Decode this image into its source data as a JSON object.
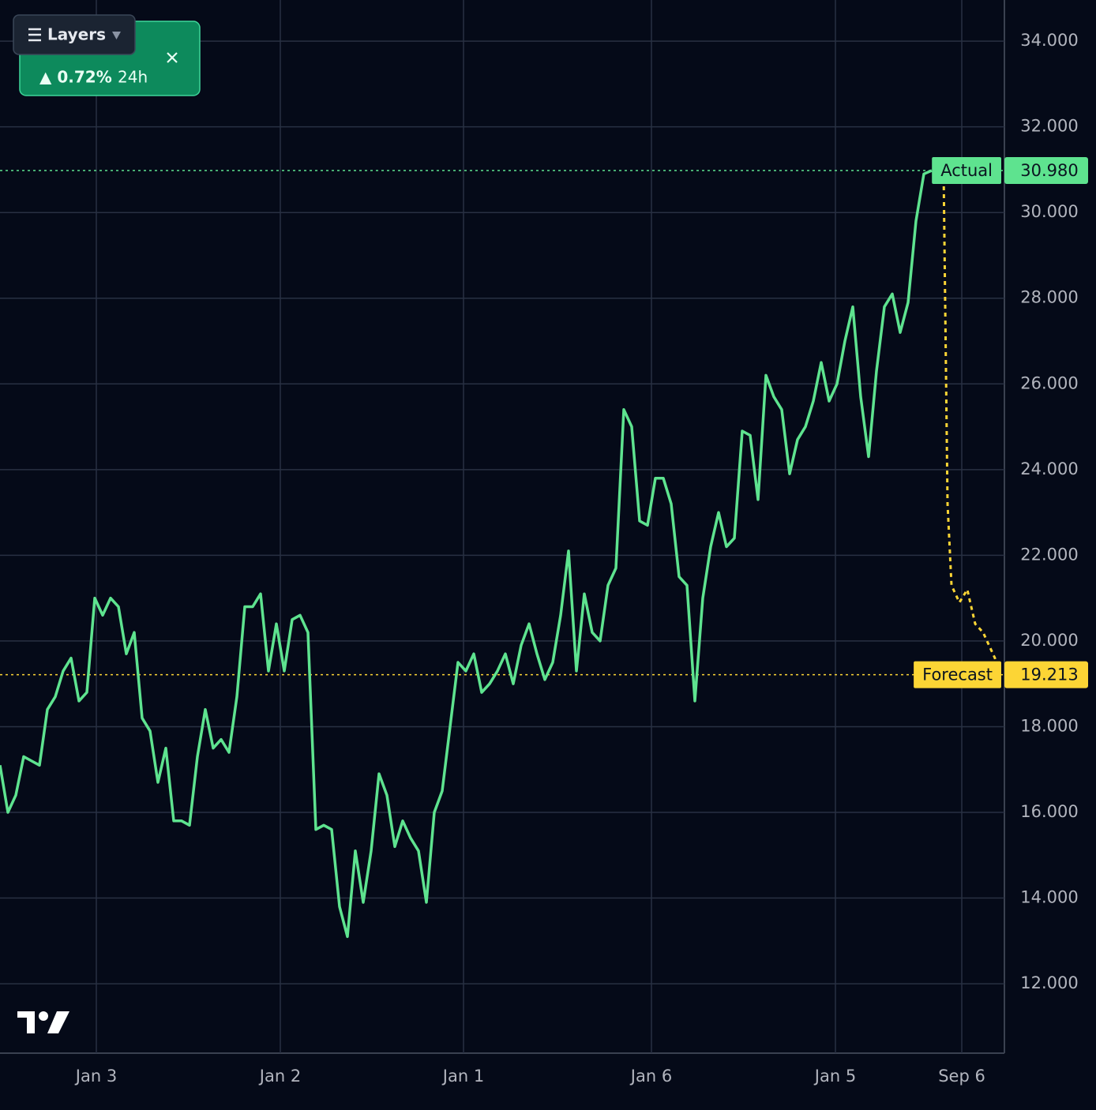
{
  "chart_data": {
    "type": "line",
    "ylim": [
      10.38,
      34.96
    ],
    "yticks": [
      {
        "value": 12,
        "label": "12.000"
      },
      {
        "value": 14,
        "label": "14.000"
      },
      {
        "value": 16,
        "label": "16.000"
      },
      {
        "value": 18,
        "label": "18.000"
      },
      {
        "value": 20,
        "label": "20.000"
      },
      {
        "value": 22,
        "label": "22.000"
      },
      {
        "value": 24,
        "label": "24.000"
      },
      {
        "value": 26,
        "label": "26.000"
      },
      {
        "value": 28,
        "label": "28.000"
      },
      {
        "value": 30,
        "label": "30.000"
      },
      {
        "value": 32,
        "label": "32.000"
      },
      {
        "value": 34,
        "label": "34.000"
      }
    ],
    "xlim": [
      0,
      127.2
    ],
    "xticks": [
      {
        "value": 12.2,
        "label": "Jan 3"
      },
      {
        "value": 35.5,
        "label": "Jan 2"
      },
      {
        "value": 58.7,
        "label": "Jan 1"
      },
      {
        "value": 82.5,
        "label": "Jan 6"
      },
      {
        "value": 105.8,
        "label": "Jan 5"
      },
      {
        "value": 121.8,
        "label": "Sep 6"
      }
    ],
    "grid": true,
    "series": [
      {
        "name": "Actual",
        "color": "#5ee38f",
        "values": [
          17.1,
          16.0,
          16.4,
          17.3,
          17.2,
          17.1,
          18.4,
          18.7,
          19.3,
          19.6,
          18.6,
          18.8,
          21.0,
          20.6,
          21.0,
          20.8,
          19.7,
          20.2,
          18.2,
          17.9,
          16.7,
          17.5,
          15.8,
          15.8,
          15.7,
          17.3,
          18.4,
          17.5,
          17.7,
          17.4,
          18.7,
          20.8,
          20.8,
          21.1,
          19.3,
          20.4,
          19.3,
          20.5,
          20.6,
          20.2,
          15.6,
          15.7,
          15.6,
          13.8,
          13.1,
          15.1,
          13.9,
          15.1,
          16.9,
          16.4,
          15.2,
          15.8,
          15.4,
          15.1,
          13.9,
          16.0,
          16.5,
          18.0,
          19.5,
          19.3,
          19.7,
          18.8,
          19.0,
          19.3,
          19.7,
          19.0,
          19.9,
          20.4,
          19.7,
          19.1,
          19.5,
          20.6,
          22.1,
          19.3,
          21.1,
          20.2,
          20.0,
          21.3,
          21.7,
          25.4,
          25.0,
          22.8,
          22.7,
          23.8,
          23.8,
          23.2,
          21.5,
          21.3,
          18.6,
          21.0,
          22.2,
          23.0,
          22.2,
          22.4,
          24.9,
          24.8,
          23.3,
          26.2,
          25.7,
          25.4,
          23.9,
          24.7,
          25.0,
          25.6,
          26.5,
          25.6,
          26.0,
          27.0,
          27.8,
          25.7,
          24.3,
          26.3,
          27.8,
          28.1,
          27.2,
          27.9,
          29.8,
          30.9,
          30.98
        ]
      },
      {
        "name": "Forecast",
        "color": "#fcd535",
        "x": [
          119.5,
          120,
          120.5,
          121.5,
          122.5,
          123.5,
          124.5,
          126,
          126.5
        ],
        "values": [
          30.98,
          23.2,
          21.3,
          20.9,
          21.2,
          20.4,
          20.2,
          19.6,
          19.213
        ]
      }
    ],
    "markers": [
      {
        "label": "Actual",
        "value": 30.98,
        "value_label": "30.980",
        "color": "#5ee38f"
      },
      {
        "label": "Forecast",
        "value": 19.213,
        "value_label": "19.213",
        "color": "#fcd535"
      }
    ]
  },
  "ui": {
    "layers_button": "Layers",
    "change": "▲ 0.72%",
    "period": "24h"
  }
}
